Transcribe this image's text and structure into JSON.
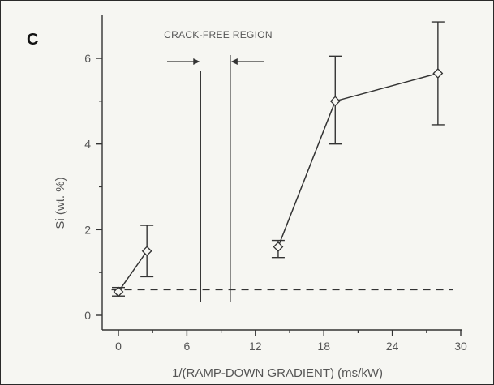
{
  "panel_label": "C",
  "chart_data": {
    "type": "line",
    "title": "",
    "xlabel": "1/(RAMP-DOWN  GRADIENT)  (ms/kW)",
    "ylabel": "Si  (wt. %)",
    "xlim": [
      -1,
      30
    ],
    "ylim": [
      -0.1,
      7
    ],
    "xticks": [
      0,
      6,
      12,
      18,
      24,
      30
    ],
    "xtick_labels": [
      "0",
      "6",
      "12",
      "18",
      "24",
      "30"
    ],
    "yticks": [
      0,
      2,
      4,
      6
    ],
    "ytick_labels": [
      "0",
      "2",
      "4",
      "6"
    ],
    "grid": false,
    "legend": "none",
    "series": [
      {
        "segment": "left",
        "x": [
          0,
          2.5
        ],
        "y": [
          0.55,
          1.5
        ],
        "yerr_low": [
          0.45,
          0.9
        ],
        "yerr_high": [
          0.65,
          2.1
        ]
      },
      {
        "segment": "right",
        "x": [
          14,
          19,
          28
        ],
        "y": [
          1.6,
          5.0,
          5.65
        ],
        "yerr_low": [
          1.35,
          4.0,
          4.45
        ],
        "yerr_high": [
          1.75,
          6.05,
          6.85
        ]
      }
    ],
    "reference_line": {
      "y": 0.6,
      "style": "dashed"
    },
    "region": {
      "label": "CRACK-FREE  REGION",
      "x_start": 7.2,
      "x_end": 9.8
    },
    "colors": {
      "line": "#333333",
      "background": "#f6f6f2",
      "text": "#555555"
    }
  }
}
